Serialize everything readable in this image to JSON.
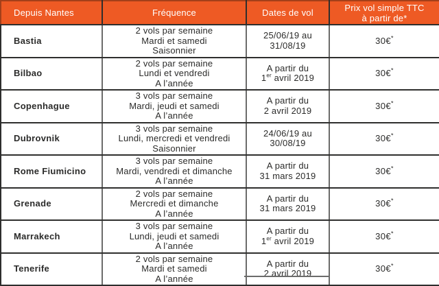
{
  "theme": {
    "header_bg": "#EE5A24",
    "header_text": "#FFFFFF",
    "border_dark": "#2E2E2D",
    "border_gray": "#6B6B6A",
    "body_text": "#2B2B2A"
  },
  "table": {
    "columns": [
      {
        "label": "Depuis Nantes"
      },
      {
        "label": "Fréquence"
      },
      {
        "label": "Dates de vol"
      },
      {
        "label": "Prix vol simple TTC\nà partir de*"
      }
    ],
    "rows": [
      {
        "city": "Bastia",
        "frequency": [
          "2 vols par semaine",
          "Mardi et samedi",
          "Saisonnier"
        ],
        "dates": [
          {
            "text": "25/06/19 au"
          },
          {
            "text": "31/08/19"
          }
        ],
        "price": {
          "amount": "30€",
          "sup": "*"
        }
      },
      {
        "city": "Bilbao",
        "frequency": [
          "2 vols par semaine",
          "Lundi et vendredi",
          "A l’année"
        ],
        "dates": [
          {
            "text": "A partir du"
          },
          {
            "pre": "1",
            "sup": "er",
            "post": " avril 2019"
          }
        ],
        "price": {
          "amount": "30€",
          "sup": "*"
        }
      },
      {
        "city": "Copenhague",
        "frequency": [
          "3 vols par semaine",
          "Mardi, jeudi et samedi",
          "A l’année"
        ],
        "dates": [
          {
            "text": "A partir du"
          },
          {
            "text": "2 avril 2019"
          }
        ],
        "price": {
          "amount": "30€",
          "sup": "*"
        }
      },
      {
        "city": "Dubrovnik",
        "frequency": [
          "3 vols par semaine",
          "Lundi, mercredi et vendredi",
          "Saisonnier"
        ],
        "dates": [
          {
            "text": "24/06/19 au"
          },
          {
            "text": "30/08/19"
          }
        ],
        "price": {
          "amount": "30€",
          "sup": "*"
        }
      },
      {
        "city": "Rome Fiumicino",
        "frequency": [
          "3 vols par semaine",
          "Mardi, vendredi et dimanche",
          "A l’année"
        ],
        "dates": [
          {
            "text": "A partir du"
          },
          {
            "text": "31 mars 2019"
          }
        ],
        "price": {
          "amount": "30€",
          "sup": "*"
        }
      },
      {
        "city": "Grenade",
        "frequency": [
          "2 vols par semaine",
          "Mercredi et dimanche",
          "A l’année"
        ],
        "dates": [
          {
            "text": "A partir du"
          },
          {
            "text": "31 mars 2019"
          }
        ],
        "price": {
          "amount": "30€",
          "sup": "*"
        }
      },
      {
        "city": "Marrakech",
        "frequency": [
          "3 vols par semaine",
          "Lundi, jeudi et samedi",
          "A l’année"
        ],
        "dates": [
          {
            "text": "A partir du"
          },
          {
            "pre": "1",
            "sup": "er",
            "post": " avril 2019"
          }
        ],
        "price": {
          "amount": "30€",
          "sup": "*"
        }
      },
      {
        "city": "Tenerife",
        "frequency": [
          "2 vols par semaine",
          "Mardi et samedi",
          "A l’année"
        ],
        "dates": [
          {
            "text": "A partir du"
          },
          {
            "text": "2 avril 2019"
          }
        ],
        "price": {
          "amount": "30€",
          "sup": "*"
        }
      }
    ]
  }
}
